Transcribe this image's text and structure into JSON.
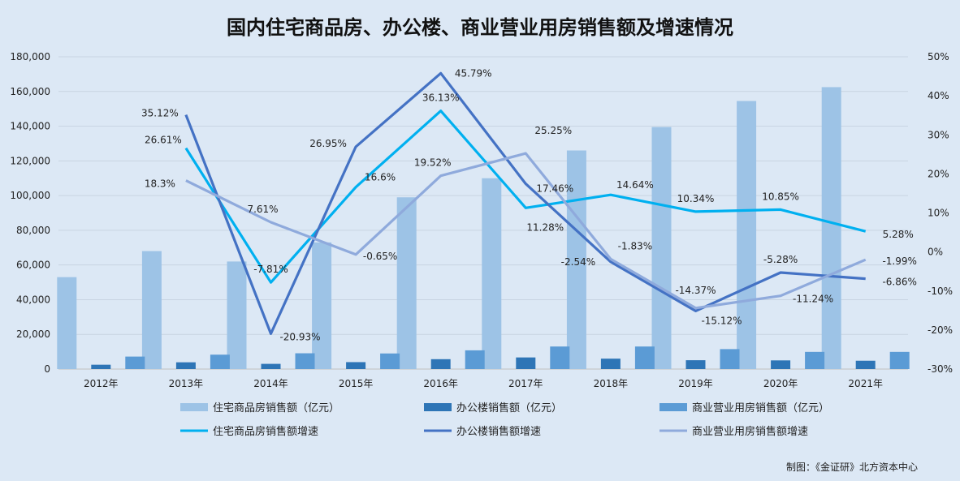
{
  "chart_data": {
    "type": "bar",
    "title": "国内住宅商品房、办公楼、商业营业用房销售额及增速情况",
    "credit": "制图：《金证研》北方资本中心",
    "categories": [
      "2012年",
      "2013年",
      "2014年",
      "2015年",
      "2016年",
      "2017年",
      "2018年",
      "2019年",
      "2020年",
      "2021年"
    ],
    "y_left": {
      "lim": [
        0,
        180000
      ],
      "ticks": [
        "0",
        "20,000",
        "40,000",
        "60,000",
        "80,000",
        "100,000",
        "120,000",
        "140,000",
        "160,000",
        "180,000"
      ]
    },
    "y_right": {
      "lim": [
        -30,
        50
      ],
      "ticks": [
        "-30%",
        "-20%",
        "-10%",
        "0%",
        "10%",
        "20%",
        "30%",
        "40%",
        "50%"
      ]
    },
    "grid": true,
    "legend_position": "bottom",
    "bar_series": [
      {
        "name": "住宅商品房销售额（亿元）",
        "color": "#9dc3e6",
        "values": [
          53000,
          68000,
          62000,
          73000,
          99000,
          110000,
          126000,
          139500,
          154500,
          162500
        ]
      },
      {
        "name": "办公楼销售额（亿元）",
        "color": "#2e75b6",
        "values": [
          2500,
          3900,
          3000,
          4000,
          5700,
          6700,
          6000,
          5100,
          5000,
          4800
        ]
      },
      {
        "name": "商业营业用房销售额（亿元）",
        "color": "#5b9bd5",
        "values": [
          7200,
          8300,
          9100,
          9000,
          10800,
          13000,
          13000,
          11500,
          9900,
          9900
        ]
      }
    ],
    "line_series": [
      {
        "name": "住宅商品房销售额增速",
        "color": "#00b0f0",
        "x_start_index": 1,
        "values": [
          26.61,
          -7.81,
          16.6,
          36.13,
          11.28,
          14.64,
          10.34,
          10.85,
          5.28
        ],
        "labels": [
          "26.61%",
          "-7.81%",
          "16.6%",
          "36.13%",
          "11.28%",
          "14.64%",
          "10.34%",
          "10.85%",
          "5.28%"
        ]
      },
      {
        "name": "办公楼销售额增速",
        "color": "#4472c4",
        "x_start_index": 1,
        "values": [
          35.12,
          -20.93,
          26.95,
          45.79,
          17.46,
          -2.54,
          -15.12,
          -5.28,
          -6.86
        ],
        "labels": [
          "35.12%",
          "-20.93%",
          "26.95%",
          "45.79%",
          "17.46%",
          "-2.54%",
          "-15.12%",
          "-5.28%",
          "-6.86%"
        ]
      },
      {
        "name": "商业营业用房销售额增速",
        "color": "#8faadc",
        "x_start_index": 1,
        "values": [
          18.3,
          7.61,
          -0.65,
          19.52,
          25.25,
          -1.83,
          -14.37,
          -11.24,
          -1.99
        ],
        "labels": [
          "18.3%",
          "7.61%",
          "-0.65%",
          "19.52%",
          "25.25%",
          "-1.83%",
          "-14.37%",
          "-11.24%",
          "-1.99%"
        ]
      }
    ]
  }
}
